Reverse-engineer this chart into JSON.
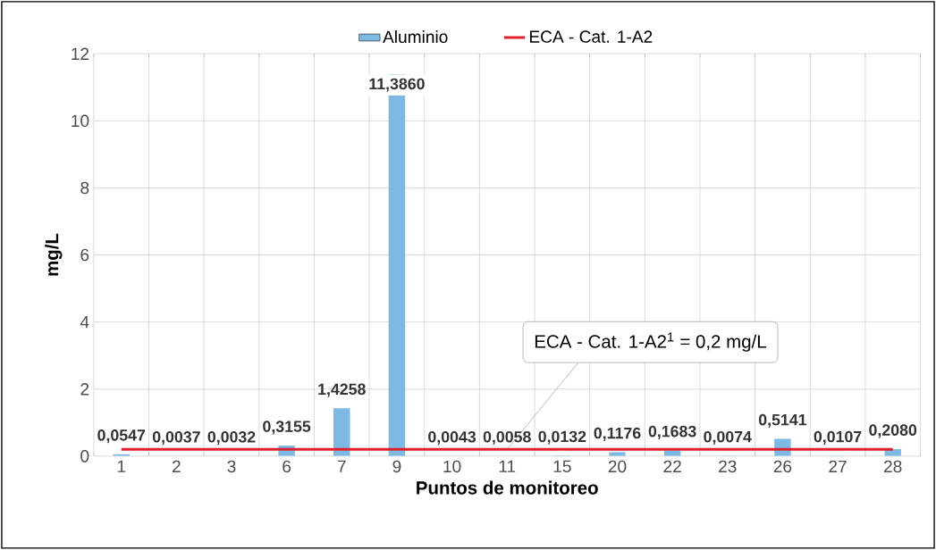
{
  "chart_data": {
    "type": "bar",
    "xlabel": "Puntos de monitoreo",
    "ylabel": "mg/L",
    "categories": [
      "1",
      "2",
      "3",
      "6",
      "7",
      "9",
      "10",
      "11",
      "15",
      "20",
      "22",
      "23",
      "26",
      "27",
      "28"
    ],
    "series": [
      {
        "name": "Aluminio",
        "color": "#7db9e3",
        "values": [
          0.0547,
          0.0037,
          0.0032,
          0.3155,
          1.4258,
          11.386,
          0.0043,
          0.0058,
          0.0132,
          0.1176,
          0.1683,
          0.0074,
          0.5141,
          0.0107,
          0.208
        ],
        "value_labels": [
          "0,0547",
          "0,0037",
          "0,0032",
          "0,3155",
          "1,4258",
          "11,3860",
          "0,0043",
          "0,0058",
          "0,0132",
          "0,1176",
          "0,1683",
          "0,0074",
          "0,5141",
          "0,0107",
          "0,2080"
        ]
      },
      {
        "name": "ECA - Cat. 1-A2",
        "type": "line",
        "color": "#e0202c",
        "values": [
          0.2,
          0.2,
          0.2,
          0.2,
          0.2,
          0.2,
          0.2,
          0.2,
          0.2,
          0.2,
          0.2,
          0.2,
          0.2,
          0.2,
          0.2
        ]
      }
    ],
    "annotations": [
      {
        "text": "ECA - Cat. 1-A2$^{1}$ = 0,2 mg/L",
        "x": "11",
        "y": 0.2
      }
    ],
    "ylim": [
      0,
      12
    ],
    "yticks": [
      0,
      2,
      4,
      6,
      8,
      10,
      12
    ],
    "grid": true,
    "legend": "top"
  }
}
